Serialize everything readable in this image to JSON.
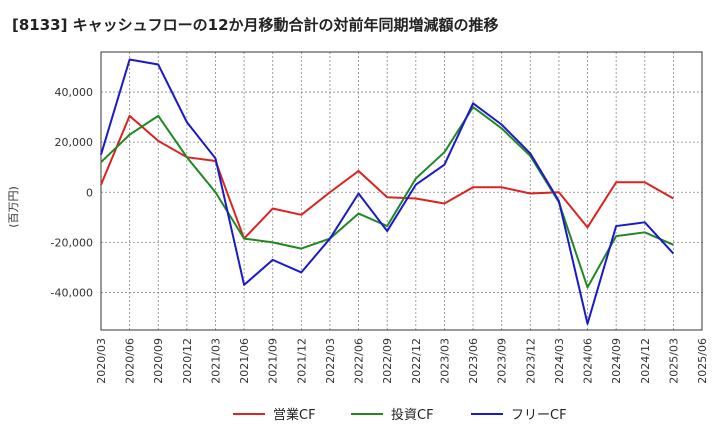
{
  "chart_data": {
    "type": "line",
    "title": "[8133]  キャッシュフローの12か月移動合計の対前年同期増減額の推移",
    "ylabel": "(百万円)",
    "xlabel": "",
    "ylim": [
      -55000,
      56000
    ],
    "yticks": [
      -40000,
      -20000,
      0,
      20000,
      40000
    ],
    "ytick_labels": [
      "-40,000",
      "-20,000",
      "0",
      "20,000",
      "40,000"
    ],
    "x": [
      "2020/03",
      "2020/06",
      "2020/09",
      "2020/12",
      "2021/03",
      "2021/06",
      "2021/09",
      "2021/12",
      "2022/03",
      "2022/06",
      "2022/09",
      "2022/12",
      "2023/03",
      "2023/06",
      "2023/09",
      "2023/12",
      "2024/03",
      "2024/06",
      "2024/09",
      "2024/12",
      "2025/03",
      "2025/06"
    ],
    "grid": true,
    "legend_position": "bottom",
    "series": [
      {
        "name": "営業CF",
        "color": "#dd2222",
        "values": [
          3000,
          30500,
          20500,
          14000,
          12500,
          -18500,
          -6500,
          -9000,
          0,
          8500,
          -2000,
          -2500,
          -4500,
          2000,
          2000,
          -500,
          0,
          -14000,
          4000,
          4000,
          -2500,
          null
        ]
      },
      {
        "name": "投資CF",
        "color": "#228822",
        "values": [
          12000,
          23000,
          30500,
          14000,
          0,
          -18500,
          -20000,
          -22500,
          -18500,
          -8500,
          -13500,
          5500,
          16000,
          34000,
          25500,
          14500,
          -4000,
          -38000,
          -17500,
          -16000,
          -21000,
          null
        ]
      },
      {
        "name": "フリーCF",
        "color": "#1a1acc",
        "values": [
          15000,
          53000,
          51000,
          28000,
          13500,
          -37000,
          -27000,
          -32000,
          -18500,
          -500,
          -15500,
          3000,
          11000,
          35500,
          27000,
          15500,
          -3500,
          -52500,
          -13500,
          -12000,
          -24500,
          null
        ]
      }
    ]
  }
}
